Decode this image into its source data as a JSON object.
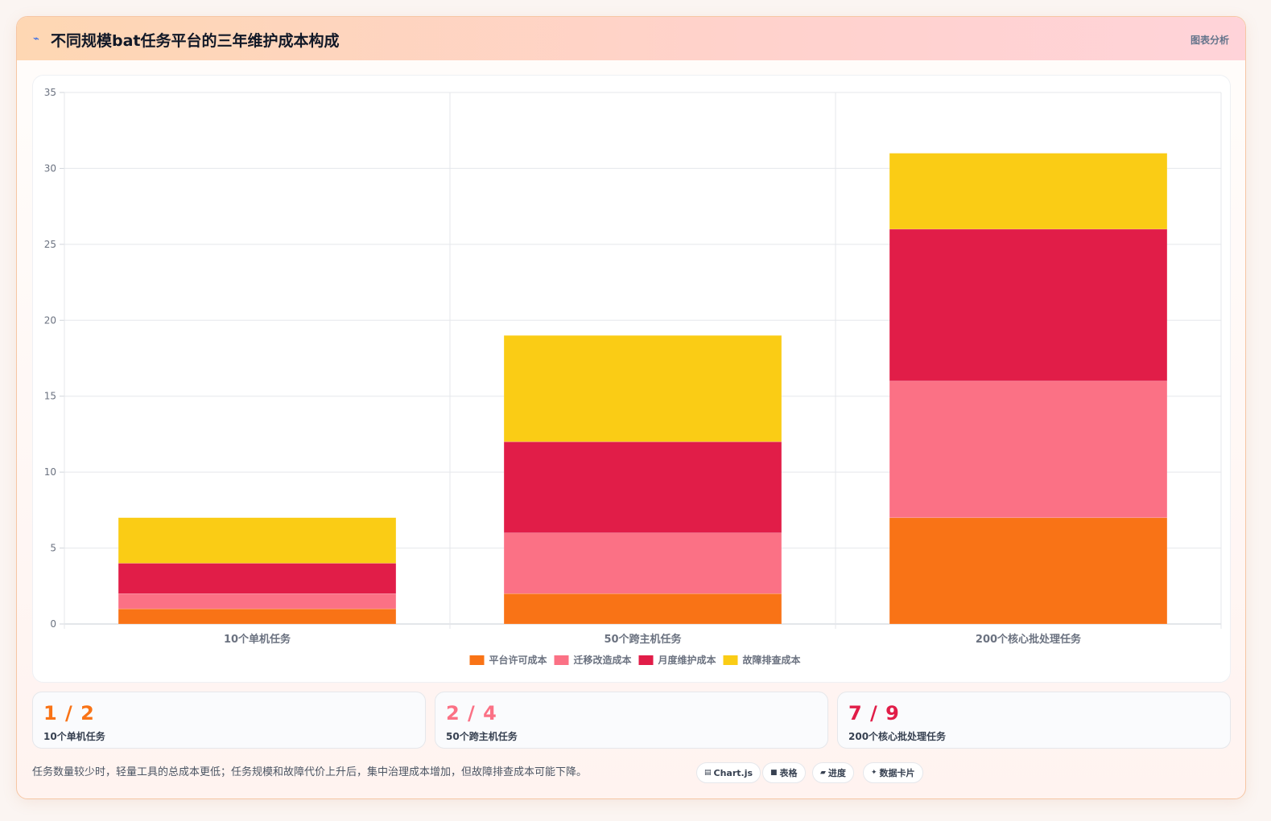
{
  "header": {
    "icon": "chart-icon",
    "title": "不同规模bat任务平台的三年维护成本构成",
    "link": "图表分析"
  },
  "chart_data": {
    "type": "bar",
    "stacked": true,
    "title": "",
    "xlabel": "",
    "ylabel": "",
    "ylim": [
      0,
      35
    ],
    "y_ticks": [
      0,
      5,
      10,
      15,
      20,
      25,
      30,
      35
    ],
    "grid": true,
    "legend_position": "bottom",
    "categories": [
      "10个单机任务",
      "50个跨主机任务",
      "200个核心批处理任务"
    ],
    "series": [
      {
        "name": "平台许可成本",
        "color": "#f97316",
        "values": [
          1,
          2,
          7
        ]
      },
      {
        "name": "迁移改造成本",
        "color": "#fb7185",
        "values": [
          1,
          4,
          9
        ]
      },
      {
        "name": "月度维护成本",
        "color": "#e11d48",
        "values": [
          2,
          6,
          10
        ]
      },
      {
        "name": "故障排查成本",
        "color": "#facc15",
        "values": [
          3,
          7,
          5
        ]
      }
    ]
  },
  "stats": [
    {
      "value": "1 / 2",
      "label": "10个单机任务",
      "color": "#f97316"
    },
    {
      "value": "2 / 4",
      "label": "50个跨主机任务",
      "color": "#fb7185"
    },
    {
      "value": "7 / 9",
      "label": "200个核心批处理任务",
      "color": "#e11d48"
    }
  ],
  "note": "任务数量较少时，轻量工具的总成本更低；任务规模和故障代价上升后，集中治理成本增加，但故障排查成本可能下降。",
  "pills": [
    {
      "icon": "▤",
      "icon_name": "chart-icon",
      "label": "Chart.js"
    },
    {
      "icon": "■",
      "icon_name": "table-icon",
      "label": "表格"
    },
    {
      "icon": "▰",
      "icon_name": "progress-icon",
      "label": "进度"
    },
    {
      "icon": "✦",
      "icon_name": "sparkle-icon",
      "label": "数据卡片"
    }
  ]
}
